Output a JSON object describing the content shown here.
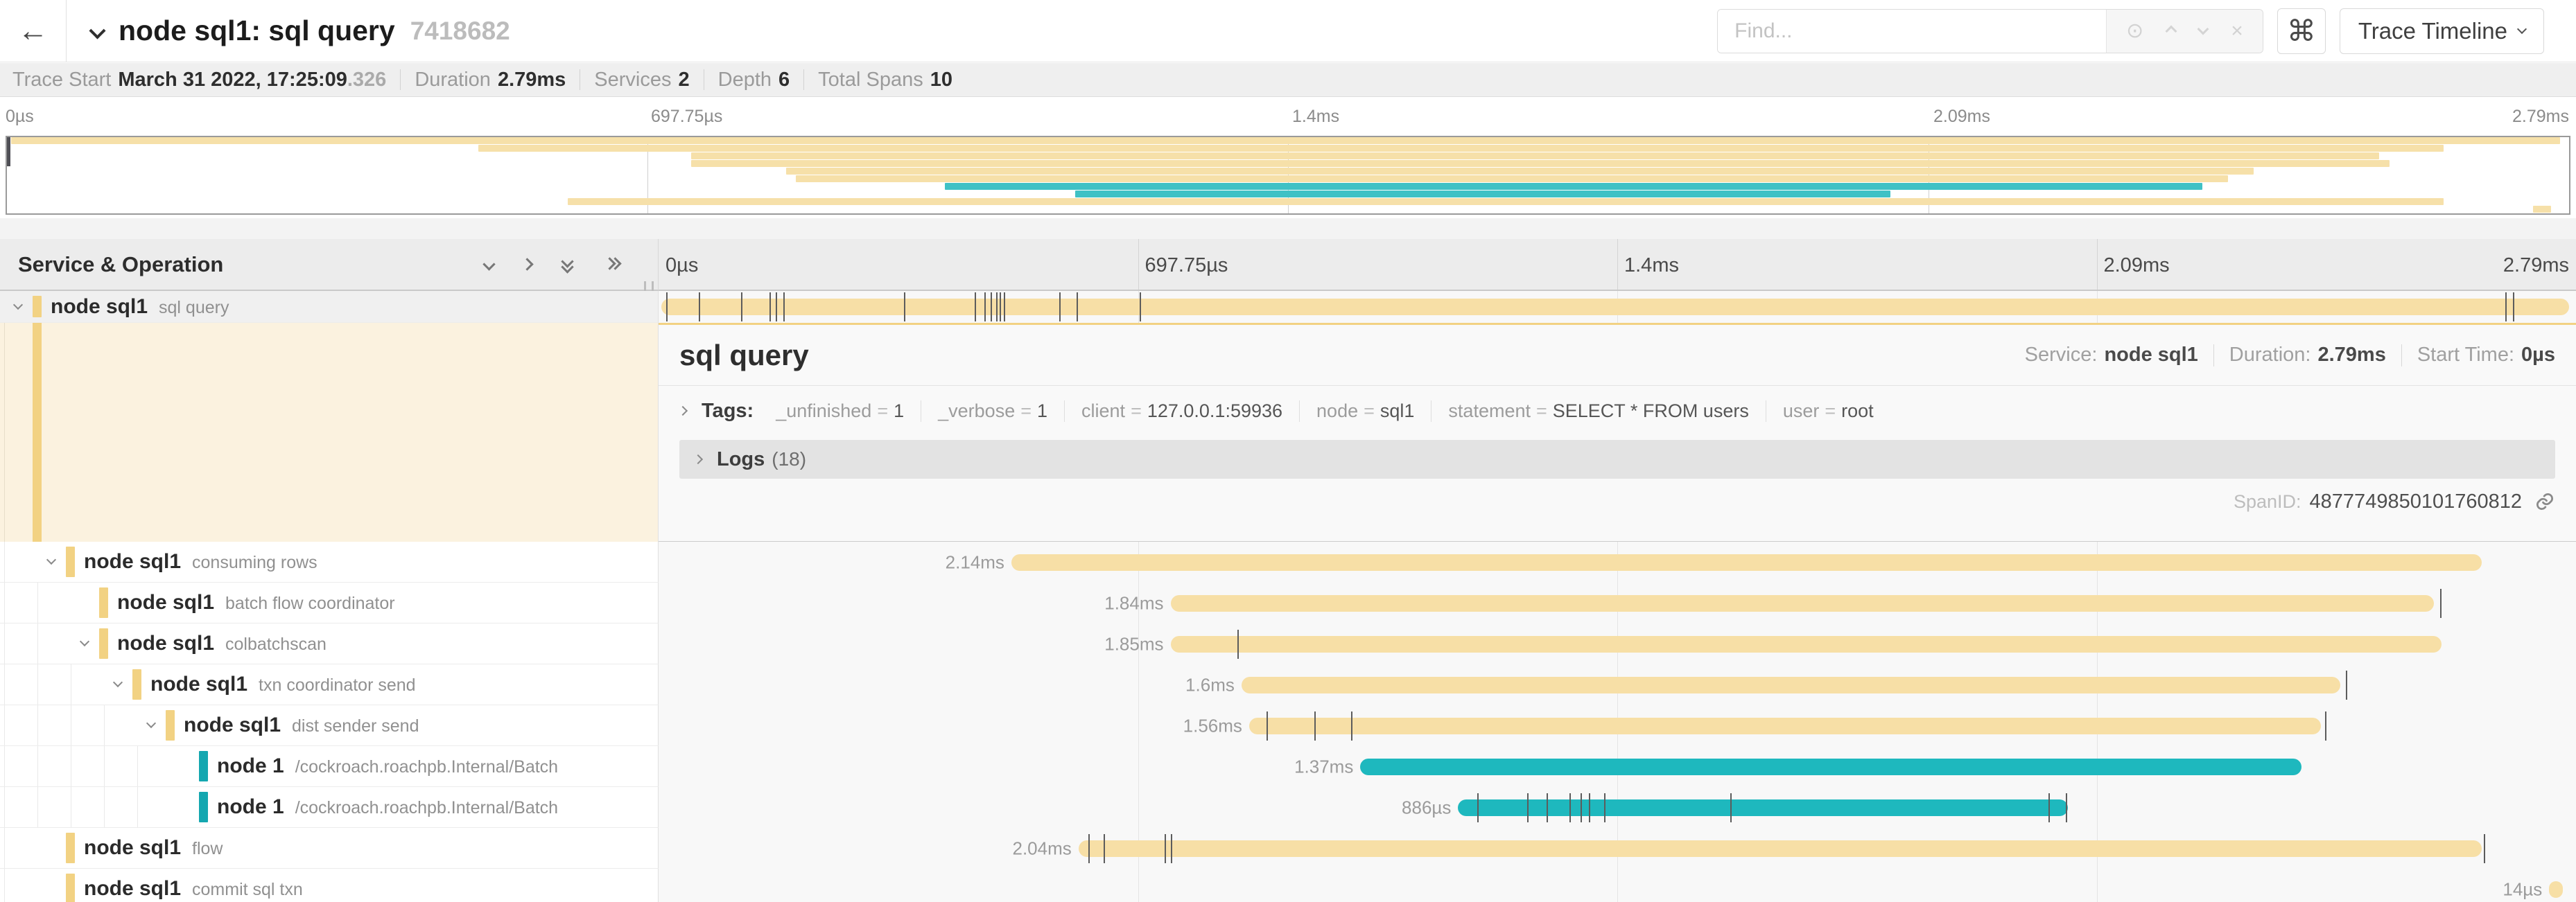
{
  "header": {
    "back_icon": "←",
    "title": "node sql1: sql query",
    "trace_id": "7418682",
    "find_placeholder": "Find...",
    "find_locate_icon": "⊙",
    "find_clear_icon": "×",
    "shortcut_button": "⌘",
    "view_selector": "Trace Timeline"
  },
  "meta": {
    "items": [
      {
        "label": "Trace Start",
        "value": "March 31 2022, 17:25:09",
        "suffix": ".326"
      },
      {
        "label": "Duration",
        "value": "2.79ms"
      },
      {
        "label": "Services",
        "value": "2"
      },
      {
        "label": "Depth",
        "value": "6"
      },
      {
        "label": "Total Spans",
        "value": "10"
      }
    ]
  },
  "timeline": {
    "tick_labels": [
      "0µs",
      "697.75µs",
      "1.4ms",
      "2.09ms",
      "2.79ms"
    ],
    "tick_positions_pct": [
      0,
      25,
      50,
      75,
      100
    ]
  },
  "tree_header": "Service & Operation",
  "colors": {
    "tan_bar": "#f7dfa6",
    "tan_indicator": "#f2d283",
    "teal_bar": "#1eb8be",
    "teal_indicator": "#14a7b0",
    "minimap_tan": "#f6e0a9",
    "minimap_teal": "#3fc1c5"
  },
  "spans": [
    {
      "service": "node sql1",
      "operation": "sql query",
      "depth": 0,
      "color": "tan",
      "start_pct": 0.15,
      "width_pct": 99.5,
      "duration_label": "",
      "has_children": true,
      "expanded": true,
      "selected": true,
      "ticks_pct": [
        0.4,
        2.1,
        4.3,
        5.8,
        6.1,
        6.5,
        12.8,
        16.5,
        17.0,
        17.3,
        17.6,
        17.8,
        18.0,
        20.9,
        21.8,
        25.1,
        96.3,
        96.7
      ]
    },
    {
      "service": "node sql1",
      "operation": "consuming rows",
      "depth": 1,
      "color": "tan",
      "start_pct": 18.4,
      "width_pct": 76.7,
      "duration_label": "2.14ms",
      "has_children": true,
      "expanded": true,
      "selected": false,
      "ticks_pct": []
    },
    {
      "service": "node sql1",
      "operation": "batch flow coordinator",
      "depth": 2,
      "color": "tan",
      "start_pct": 26.7,
      "width_pct": 65.9,
      "duration_label": "1.84ms",
      "has_children": false,
      "expanded": false,
      "selected": false,
      "ticks_pct": [
        92.9
      ]
    },
    {
      "service": "node sql1",
      "operation": "colbatchscan",
      "depth": 2,
      "color": "tan",
      "start_pct": 26.7,
      "width_pct": 66.3,
      "duration_label": "1.85ms",
      "has_children": true,
      "expanded": true,
      "selected": false,
      "ticks_pct": [
        30.2
      ]
    },
    {
      "service": "node sql1",
      "operation": "txn coordinator send",
      "depth": 3,
      "color": "tan",
      "start_pct": 30.4,
      "width_pct": 57.3,
      "duration_label": "1.6ms",
      "has_children": true,
      "expanded": true,
      "selected": false,
      "ticks_pct": [
        88.0
      ]
    },
    {
      "service": "node sql1",
      "operation": "dist sender send",
      "depth": 4,
      "color": "tan",
      "start_pct": 30.8,
      "width_pct": 55.9,
      "duration_label": "1.56ms",
      "has_children": true,
      "expanded": true,
      "selected": false,
      "ticks_pct": [
        31.7,
        34.2,
        36.1,
        86.9
      ]
    },
    {
      "service": "node 1",
      "operation": "/cockroach.roachpb.Internal/Batch",
      "depth": 5,
      "color": "teal",
      "start_pct": 36.6,
      "width_pct": 49.1,
      "duration_label": "1.37ms",
      "has_children": false,
      "expanded": false,
      "selected": false,
      "ticks_pct": []
    },
    {
      "service": "node 1",
      "operation": "/cockroach.roachpb.Internal/Batch",
      "depth": 5,
      "color": "teal",
      "start_pct": 41.7,
      "width_pct": 31.8,
      "duration_label": "886µs",
      "has_children": false,
      "expanded": false,
      "selected": false,
      "ticks_pct": [
        42.7,
        45.3,
        46.3,
        47.5,
        48.1,
        48.5,
        49.3,
        55.9,
        72.5,
        73.4
      ]
    },
    {
      "service": "node sql1",
      "operation": "flow",
      "depth": 1,
      "color": "tan",
      "start_pct": 21.9,
      "width_pct": 73.2,
      "duration_label": "2.04ms",
      "has_children": false,
      "expanded": false,
      "selected": false,
      "ticks_pct": [
        22.4,
        23.2,
        26.4,
        26.7,
        95.2
      ]
    },
    {
      "service": "node sql1",
      "operation": "commit sql txn",
      "depth": 1,
      "color": "tan",
      "start_pct": 98.6,
      "width_pct": 0.7,
      "duration_label": "14µs",
      "has_children": false,
      "expanded": false,
      "selected": false,
      "ticks_pct": []
    }
  ],
  "detail": {
    "title": "sql query",
    "service_label": "Service:",
    "service_value": "node sql1",
    "duration_label": "Duration:",
    "duration_value": "2.79ms",
    "start_label": "Start Time:",
    "start_value": "0µs",
    "tags_label": "Tags:",
    "tags": [
      {
        "key": "_unfinished",
        "value": "1"
      },
      {
        "key": "_verbose",
        "value": "1"
      },
      {
        "key": "client",
        "value": "127.0.0.1:59936"
      },
      {
        "key": "node",
        "value": "sql1"
      },
      {
        "key": "statement",
        "value": "SELECT * FROM users"
      },
      {
        "key": "user",
        "value": "root"
      }
    ],
    "logs_label": "Logs",
    "logs_count": "(18)",
    "span_id_label": "SpanID:",
    "span_id": "4877749850101760812"
  }
}
